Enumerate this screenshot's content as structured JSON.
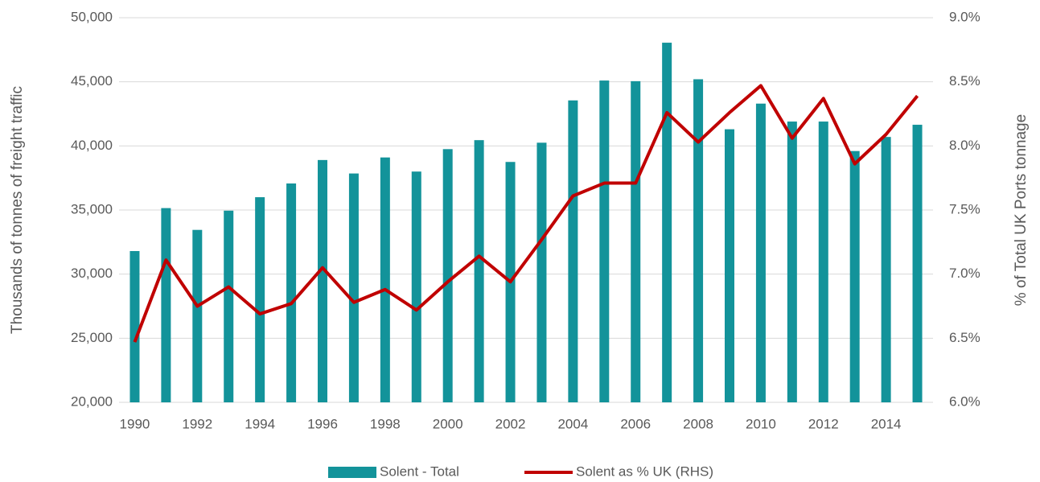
{
  "chart_data": {
    "type": "bar_line",
    "y_label": "Thousands of tonnes of freight traffic",
    "y2_label": "% of Total UK Ports tonnage",
    "categories": [
      "1990",
      null,
      "1992",
      null,
      "1994",
      null,
      "1996",
      null,
      "1998",
      null,
      "2000",
      null,
      "2002",
      null,
      "2004",
      null,
      "2006",
      null,
      "2008",
      null,
      "2010",
      null,
      "2012",
      null,
      "2014",
      null
    ],
    "series": [
      {
        "name": "Solent - Total",
        "type": "bar",
        "color": "#13939a",
        "values": [
          31800,
          35150,
          33450,
          34950,
          36000,
          37070,
          38900,
          37850,
          39100,
          38000,
          39750,
          40450,
          38750,
          40250,
          43550,
          45100,
          45050,
          48050,
          45200,
          41300,
          43300,
          41900,
          41900,
          39600,
          40700,
          41650
        ]
      },
      {
        "name": "Solent as % UK (RHS)",
        "type": "line",
        "axis": "y2",
        "color": "#c00000",
        "values": [
          6.47,
          7.11,
          6.75,
          6.9,
          6.69,
          6.77,
          7.05,
          6.78,
          6.88,
          6.72,
          6.94,
          7.14,
          6.94,
          7.27,
          7.61,
          7.71,
          7.71,
          8.26,
          8.03,
          8.26,
          8.47,
          8.06,
          8.37,
          7.86,
          8.09,
          8.39
        ]
      }
    ],
    "ylim": [
      20000,
      50000
    ],
    "yticks": [
      {
        "value": 20000,
        "label": "20,000"
      },
      {
        "value": 25000,
        "label": "25,000"
      },
      {
        "value": 30000,
        "label": "30,000"
      },
      {
        "value": 35000,
        "label": "35,000"
      },
      {
        "value": 40000,
        "label": "40,000"
      },
      {
        "value": 45000,
        "label": "45,000"
      },
      {
        "value": 50000,
        "label": "50,000"
      }
    ],
    "y2lim": [
      6.0,
      9.0
    ],
    "y2ticks": [
      {
        "value": 6.0,
        "label": "6.0%"
      },
      {
        "value": 6.5,
        "label": "6.5%"
      },
      {
        "value": 7.0,
        "label": "7.0%"
      },
      {
        "value": 7.5,
        "label": "7.5%"
      },
      {
        "value": 8.0,
        "label": "8.0%"
      },
      {
        "value": 8.5,
        "label": "8.5%"
      },
      {
        "value": 9.0,
        "label": "9.0%"
      }
    ],
    "grid": true,
    "legend": "bottom"
  }
}
